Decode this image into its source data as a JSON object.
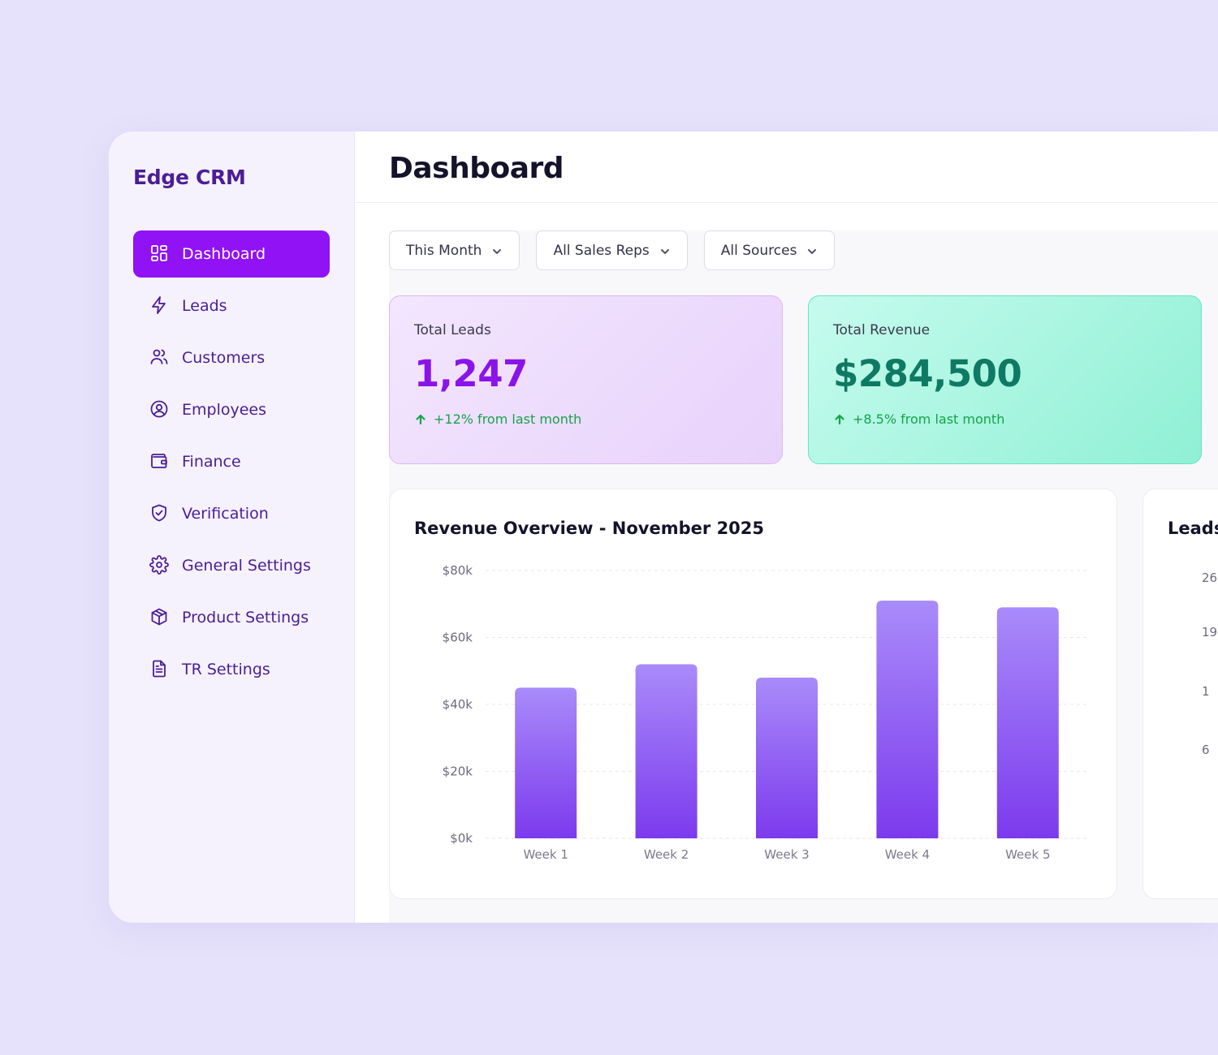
{
  "app": {
    "name": "Edge CRM"
  },
  "sidebar": {
    "items": [
      {
        "label": "Dashboard",
        "icon": "grid-icon",
        "active": true
      },
      {
        "label": "Leads",
        "icon": "bolt-icon"
      },
      {
        "label": "Customers",
        "icon": "users-icon"
      },
      {
        "label": "Employees",
        "icon": "user-circle-icon"
      },
      {
        "label": "Finance",
        "icon": "wallet-icon"
      },
      {
        "label": "Verification",
        "icon": "shield-check-icon"
      },
      {
        "label": "General Settings",
        "icon": "gear-icon"
      },
      {
        "label": "Product Settings",
        "icon": "box-icon"
      },
      {
        "label": "TR Settings",
        "icon": "document-icon"
      }
    ]
  },
  "header": {
    "title": "Dashboard"
  },
  "filters": [
    {
      "label": "This Month"
    },
    {
      "label": "All Sales Reps"
    },
    {
      "label": "All Sources"
    }
  ],
  "stats": {
    "leads": {
      "label": "Total Leads",
      "value": "1,247",
      "change": "+12% from last month"
    },
    "revenue": {
      "label": "Total Revenue",
      "value": "$284,500",
      "change": "+8.5% from last month"
    }
  },
  "colors": {
    "accent": "#9012f5",
    "bar_top": "#a98bfa",
    "bar_bottom": "#7c3aed",
    "positive": "#16a34a"
  },
  "chart_data": {
    "type": "bar",
    "title": "Revenue Overview - November 2025",
    "categories": [
      "Week 1",
      "Week 2",
      "Week 3",
      "Week 4",
      "Week 5"
    ],
    "values": [
      45000,
      52000,
      48000,
      71000,
      69000
    ],
    "ylim": [
      0,
      80000
    ],
    "yticks": [
      {
        "value": 80000,
        "label": "$80k"
      },
      {
        "value": 60000,
        "label": "$60k"
      },
      {
        "value": 40000,
        "label": "$40k"
      },
      {
        "value": 20000,
        "label": "$20k"
      },
      {
        "value": 0,
        "label": "$0k"
      }
    ],
    "grid": true
  },
  "side_chart": {
    "title": "Leads",
    "ticks": [
      "26",
      "19",
      "1",
      "6"
    ]
  }
}
